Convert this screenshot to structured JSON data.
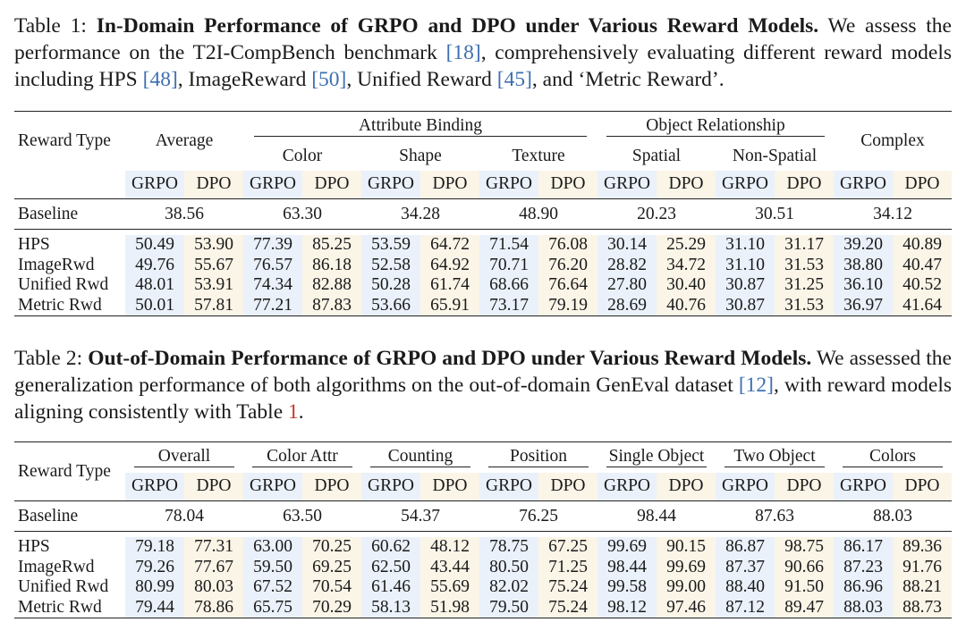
{
  "table1": {
    "caption_label": "Table 1: ",
    "caption_title": "In-Domain Performance of GRPO and DPO under Various Reward Models.",
    "caption_t1": " We assess the performance on the T2I-CompBench benchmark ",
    "caption_r1": "[18]",
    "caption_t2": ", comprehensively evaluating different reward models including HPS ",
    "caption_r2": "[48]",
    "caption_t3": ", ImageReward ",
    "caption_r3": "[50]",
    "caption_t4": ", Unified Reward ",
    "caption_r4": "[45]",
    "caption_t5": ", and ‘Metric Reward’.",
    "reward_type": "Reward Type",
    "average": "Average",
    "attribute_binding": "Attribute Binding",
    "object_relationship": "Object Relationship",
    "complex": "Complex",
    "color": "Color",
    "shape": "Shape",
    "texture": "Texture",
    "spatial": "Spatial",
    "non_spatial": "Non-Spatial",
    "grpo": "GRPO",
    "dpo": "DPO",
    "baseline": {
      "label": "Baseline",
      "values": [
        "38.56",
        "63.30",
        "34.28",
        "48.90",
        "20.23",
        "30.51",
        "34.12"
      ]
    },
    "rows": [
      {
        "label": "HPS",
        "values": [
          "50.49",
          "53.90",
          "77.39",
          "85.25",
          "53.59",
          "64.72",
          "71.54",
          "76.08",
          "30.14",
          "25.29",
          "31.10",
          "31.17",
          "39.20",
          "40.89"
        ],
        "bold": [
          1
        ]
      },
      {
        "label": "ImageRwd",
        "values": [
          "49.76",
          "55.67",
          "76.57",
          "86.18",
          "52.58",
          "64.92",
          "70.71",
          "76.20",
          "28.82",
          "34.72",
          "31.10",
          "31.53",
          "38.80",
          "40.47"
        ],
        "bold": [
          1
        ]
      },
      {
        "label": "Unified Rwd",
        "values": [
          "48.01",
          "53.91",
          "74.34",
          "82.88",
          "50.28",
          "61.74",
          "68.66",
          "76.64",
          "27.80",
          "30.40",
          "30.87",
          "31.25",
          "36.10",
          "40.52"
        ],
        "bold": [
          1
        ]
      },
      {
        "label": "Metric Rwd",
        "values": [
          "50.01",
          "57.81",
          "77.21",
          "87.83",
          "53.66",
          "65.91",
          "73.17",
          "79.19",
          "28.69",
          "40.76",
          "30.87",
          "31.53",
          "36.97",
          "41.64"
        ],
        "bold": [
          1
        ]
      }
    ]
  },
  "table2": {
    "caption_label": "Table 2: ",
    "caption_title": "Out-of-Domain Performance of GRPO and DPO under Various Reward Models.",
    "caption_t1": " We assessed the generalization performance of both algorithms on the out-of-domain GenEval dataset ",
    "caption_r1": "[12]",
    "caption_t2": ", with reward models aligning consistently with Table ",
    "caption_r2": "1",
    "caption_t3": ".",
    "reward_type": "Reward Type",
    "groups": [
      "Overall",
      "Color Attr",
      "Counting",
      "Position",
      "Single Object",
      "Two Object",
      "Colors"
    ],
    "grpo": "GRPO",
    "dpo": "DPO",
    "baseline": {
      "label": "Baseline",
      "values": [
        "78.04",
        "63.50",
        "54.37",
        "76.25",
        "98.44",
        "87.63",
        "88.03"
      ]
    },
    "rows": [
      {
        "label": "HPS",
        "values": [
          "79.18",
          "77.31",
          "63.00",
          "70.25",
          "60.62",
          "48.12",
          "78.75",
          "67.25",
          "99.69",
          "90.15",
          "86.87",
          "98.75",
          "86.17",
          "89.36"
        ],
        "bold": [
          0
        ]
      },
      {
        "label": "ImageRwd",
        "values": [
          "79.26",
          "77.67",
          "59.50",
          "69.25",
          "62.50",
          "43.44",
          "80.50",
          "71.25",
          "98.44",
          "99.69",
          "87.37",
          "90.66",
          "87.23",
          "91.76"
        ],
        "bold": [
          0
        ]
      },
      {
        "label": "Unified Rwd",
        "values": [
          "80.99",
          "80.03",
          "67.52",
          "70.54",
          "61.46",
          "55.69",
          "82.02",
          "75.24",
          "99.58",
          "99.00",
          "88.40",
          "91.50",
          "86.96",
          "88.21"
        ],
        "bold": [
          0
        ]
      },
      {
        "label": "Metric Rwd",
        "values": [
          "79.44",
          "78.86",
          "65.75",
          "70.29",
          "58.13",
          "51.98",
          "79.50",
          "75.24",
          "98.12",
          "97.46",
          "87.12",
          "89.47",
          "88.03",
          "88.73"
        ],
        "bold": [
          0
        ]
      }
    ]
  }
}
